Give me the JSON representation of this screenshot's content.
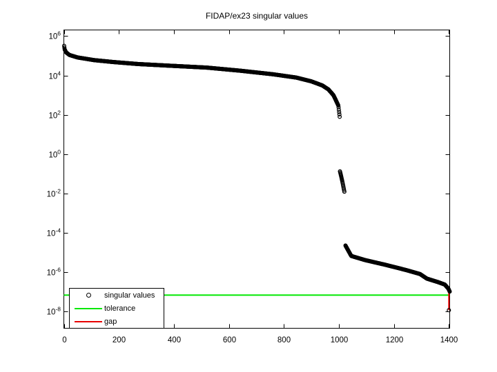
{
  "window": {
    "background": "#ffffff"
  },
  "chart_data": {
    "type": "scatter",
    "title": "FIDAP/ex23 singular values",
    "xlabel": "",
    "ylabel": "",
    "grid": false,
    "x_axis": {
      "min": 0,
      "max": 1403,
      "ticks": [
        0,
        200,
        400,
        600,
        800,
        1000,
        1200,
        1400
      ]
    },
    "y_axis": {
      "scale": "log10",
      "min_log10": -8.84,
      "max_log10": 6.31,
      "tick_exponents": [
        6,
        4,
        2,
        0,
        -2,
        -4,
        -6,
        -8
      ],
      "label_base": "10"
    },
    "legend": {
      "position": "southwest",
      "items": [
        {
          "label": "singular values",
          "sample": "marker",
          "color": "#000000"
        },
        {
          "label": "tolerance",
          "sample": "line",
          "color": "#00E800"
        },
        {
          "label": "gap",
          "sample": "line",
          "color": "#E80000"
        }
      ]
    },
    "series": [
      {
        "name": "singular values",
        "kind": "scatter",
        "marker": "o",
        "color": "#000000",
        "segments": [
          {
            "n_from": 1,
            "n_to": 998,
            "anchors": [
              [
                1,
                320000
              ],
              [
                3,
                210000
              ],
              [
                8,
                150000
              ],
              [
                20,
                110000
              ],
              [
                50,
                82000
              ],
              [
                110,
                60000
              ],
              [
                180,
                48000
              ],
              [
                270,
                38000
              ],
              [
                390,
                31000
              ],
              [
                520,
                25000
              ],
              [
                640,
                17500
              ],
              [
                760,
                11500
              ],
              [
                845,
                7800
              ],
              [
                900,
                5000
              ],
              [
                940,
                3100
              ],
              [
                962,
                1950
              ],
              [
                980,
                1000
              ],
              [
                990,
                520
              ],
              [
                998,
                300
              ]
            ]
          },
          {
            "n_from": 999,
            "n_to": 1003,
            "anchors": [
              [
                999,
                240
              ],
              [
                1003,
                80
              ]
            ]
          },
          {
            "n_from": 1004,
            "n_to": 1020,
            "anchors": [
              [
                1004,
                0.135
              ],
              [
                1008,
                0.08
              ],
              [
                1012,
                0.045
              ],
              [
                1016,
                0.024
              ],
              [
                1020,
                0.0125
              ]
            ]
          },
          {
            "n_from": 1024,
            "n_to": 1403,
            "anchors": [
              [
                1024,
                2.3e-05
              ],
              [
                1045,
                6.8e-06
              ],
              [
                1095,
                4.2e-06
              ],
              [
                1170,
                2.4e-06
              ],
              [
                1245,
                1.3e-06
              ],
              [
                1295,
                8.2e-07
              ],
              [
                1320,
                4.8e-07
              ],
              [
                1360,
                3.2e-07
              ],
              [
                1385,
                2.4e-07
              ],
              [
                1398,
                1.5e-07
              ],
              [
                1403,
                1.05e-07
              ]
            ]
          },
          {
            "n_from": 1400,
            "n_to": 1400,
            "anchors": [
              [
                1400,
                1.2e-08
              ]
            ]
          }
        ]
      },
      {
        "name": "tolerance",
        "kind": "hline",
        "value": 7e-08,
        "color": "#00E800"
      },
      {
        "name": "gap",
        "kind": "vline",
        "x": 1400,
        "v_from": 9.5e-08,
        "v_to": 1.2e-08,
        "color": "#E80000"
      }
    ]
  }
}
